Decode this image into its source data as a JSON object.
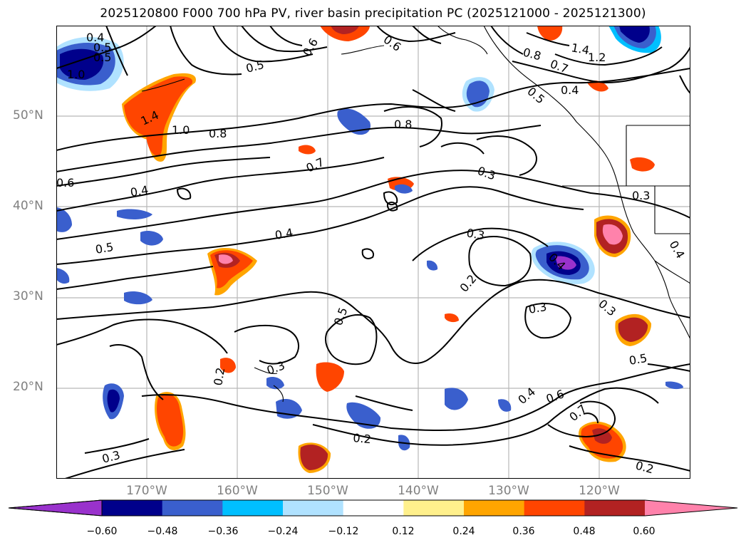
{
  "title": "2025120800 F000 700 hPa PV, river basin precipitation PC (2025121000 - 2025121300)",
  "latitude_labels": [
    "50°N",
    "40°N",
    "30°N",
    "20°N"
  ],
  "longitude_labels": [
    "170°W",
    "160°W",
    "150°W",
    "140°W",
    "130°W",
    "120°W"
  ],
  "colorbar": {
    "colors": [
      "#9932cc",
      "#00008b",
      "#3a5fcd",
      "#00bfff",
      "#b0e2ff",
      "#ffffff",
      "#fff08c",
      "#ffa500",
      "#ff4500",
      "#b22222",
      "#ff82ab"
    ],
    "tick_labels": [
      "−0.60",
      "−0.48",
      "−0.36",
      "−0.24",
      "−0.12",
      "0.12",
      "0.24",
      "0.36",
      "0.48",
      "0.60"
    ]
  },
  "contour_labels": [
    "0.4",
    "0.5",
    "0.5",
    "1.0",
    "1.4",
    "1.0",
    "0.8",
    "0.5",
    "0.6",
    "0.6",
    "0.8",
    "0.7",
    "1.4",
    "1.2",
    "0.5",
    "0.4",
    "0.8",
    "0.7",
    "0.3",
    "0.6",
    "0.4",
    "0.3",
    "0.5",
    "0.4",
    "0.3",
    "0.4",
    "0.4",
    "0.2",
    "0.3",
    "0.5",
    "0.3",
    "0.5",
    "0.3",
    "0.2",
    "0.4",
    "0.6",
    "0.7",
    "0.2",
    "0.2",
    "0.3"
  ],
  "precip_area_names": [
    "north-pacific-blue",
    "northwest-blue",
    "gulf-alaska-red",
    "aleutian-red",
    "canada-blue",
    "canada-red",
    "northeast-blue",
    "california-pink",
    "southern-california-red",
    "central-pacific-red",
    "central-blue",
    "hawaii-red-west",
    "hawaii-red-center",
    "hawaii-blue",
    "subtropical-blue",
    "southeast-red",
    "offshore-blue"
  ]
}
